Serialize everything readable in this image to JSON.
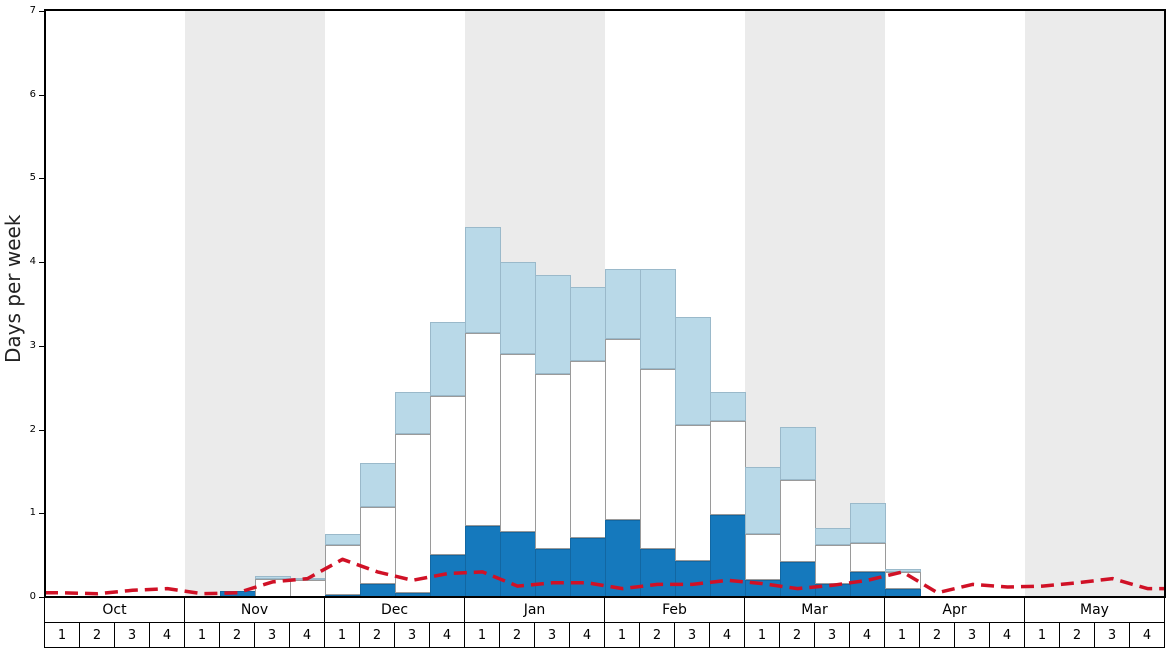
{
  "y_axis": {
    "label": "Days per week",
    "ticks": [
      "0",
      "1",
      "2",
      "3",
      "4",
      "5",
      "6",
      "7"
    ],
    "max": 7
  },
  "months": [
    {
      "label": "Oct",
      "shaded": false
    },
    {
      "label": "Nov",
      "shaded": true
    },
    {
      "label": "Dec",
      "shaded": false
    },
    {
      "label": "Jan",
      "shaded": true
    },
    {
      "label": "Feb",
      "shaded": false
    },
    {
      "label": "Mar",
      "shaded": true
    },
    {
      "label": "Apr",
      "shaded": false
    },
    {
      "label": "May",
      "shaded": true
    }
  ],
  "week_numbers": [
    "1",
    "2",
    "3",
    "4",
    "1",
    "2",
    "3",
    "4",
    "1",
    "2",
    "3",
    "4",
    "1",
    "2",
    "3",
    "4",
    "1",
    "2",
    "3",
    "4",
    "1",
    "2",
    "3",
    "4",
    "1",
    "2",
    "3",
    "4",
    "1",
    "2",
    "3",
    "4"
  ],
  "colors": {
    "dark_blue": "#1579bd",
    "white_bar": "#ffffff",
    "light_blue": "#b9d9e8",
    "red_line": "#d01126",
    "band_gray": "#ebebeb",
    "bar_edge": "#9a9a9a"
  },
  "chart_data": {
    "type": "bar",
    "stacked": true,
    "title": "",
    "xlabel": "",
    "ylabel": "Days per week",
    "ylim": [
      0,
      7
    ],
    "grid": false,
    "legend": "none",
    "categories": [
      "Oct 1",
      "Oct 2",
      "Oct 3",
      "Oct 4",
      "Nov 1",
      "Nov 2",
      "Nov 3",
      "Nov 4",
      "Dec 1",
      "Dec 2",
      "Dec 3",
      "Dec 4",
      "Jan 1",
      "Jan 2",
      "Jan 3",
      "Jan 4",
      "Feb 1",
      "Feb 2",
      "Feb 3",
      "Feb 4",
      "Mar 1",
      "Mar 2",
      "Mar 3",
      "Mar 4",
      "Apr 1",
      "Apr 2",
      "Apr 3",
      "Apr 4",
      "May 1",
      "May 2",
      "May 3",
      "May 4"
    ],
    "series": [
      {
        "name": "dark_blue_days",
        "css": "dark",
        "color": "#1579bd",
        "values": [
          0,
          0,
          0,
          0,
          0,
          0.07,
          0,
          0,
          0.02,
          0.15,
          0.05,
          0.5,
          0.85,
          0.78,
          0.57,
          0.7,
          0.92,
          0.57,
          0.43,
          0.98,
          0.2,
          0.42,
          0.15,
          0.3,
          0.1,
          0,
          0,
          0,
          0,
          0,
          0,
          0
        ]
      },
      {
        "name": "white_days",
        "css": "white",
        "color": "#ffffff",
        "values": [
          0,
          0,
          0,
          0,
          0,
          0,
          0.22,
          0.2,
          0.6,
          0.93,
          1.9,
          1.9,
          2.3,
          2.12,
          2.1,
          2.12,
          2.16,
          2.16,
          1.62,
          1.12,
          0.55,
          0.98,
          0.47,
          0.35,
          0.2,
          0,
          0,
          0,
          0,
          0,
          0,
          0
        ]
      },
      {
        "name": "light_blue_days",
        "css": "light",
        "color": "#b9d9e8",
        "values": [
          0,
          0,
          0,
          0,
          0,
          0,
          0.03,
          0.02,
          0.13,
          0.52,
          0.5,
          0.88,
          1.27,
          1.1,
          1.18,
          0.88,
          0.84,
          1.19,
          1.3,
          0.35,
          0.8,
          0.63,
          0.21,
          0.47,
          0.03,
          0,
          0,
          0,
          0,
          0,
          0,
          0
        ]
      }
    ],
    "line_series": {
      "name": "red_dashed_line",
      "color": "#d01126",
      "style": "dashed",
      "values": [
        0.05,
        0.04,
        0.08,
        0.1,
        0.04,
        0.05,
        0.18,
        0.22,
        0.45,
        0.3,
        0.2,
        0.28,
        0.3,
        0.13,
        0.17,
        0.17,
        0.1,
        0.15,
        0.15,
        0.2,
        0.16,
        0.1,
        0.14,
        0.2,
        0.3,
        0.05,
        0.15,
        0.12,
        0.13,
        0.17,
        0.22,
        0.1
      ]
    }
  }
}
